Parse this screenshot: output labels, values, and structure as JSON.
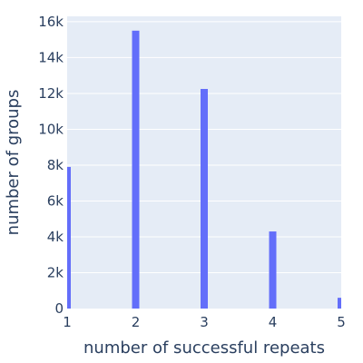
{
  "chart_data": {
    "type": "bar",
    "xlabel": "number of successful repeats",
    "ylabel": "number of groups",
    "categories": [
      1,
      2,
      3,
      4,
      5
    ],
    "values": [
      7900,
      15500,
      12250,
      4300,
      600
    ],
    "xlim": [
      1,
      5
    ],
    "ylim": [
      0,
      16300
    ],
    "x_ticks": [
      {
        "value": 1,
        "label": "1"
      },
      {
        "value": 2,
        "label": "2"
      },
      {
        "value": 3,
        "label": "3"
      },
      {
        "value": 4,
        "label": "4"
      },
      {
        "value": 5,
        "label": "5"
      }
    ],
    "y_ticks": [
      {
        "value": 0,
        "label": "0"
      },
      {
        "value": 2000,
        "label": "2k"
      },
      {
        "value": 4000,
        "label": "4k"
      },
      {
        "value": 6000,
        "label": "6k"
      },
      {
        "value": 8000,
        "label": "8k"
      },
      {
        "value": 10000,
        "label": "10k"
      },
      {
        "value": 12000,
        "label": "12k"
      },
      {
        "value": 14000,
        "label": "14k"
      },
      {
        "value": 16000,
        "label": "16k"
      }
    ],
    "grid": true,
    "colors": {
      "bar": "#636efa",
      "plot_bg": "#e5ecf6",
      "grid": "#ffffff",
      "text": "#2a3f5f"
    }
  }
}
